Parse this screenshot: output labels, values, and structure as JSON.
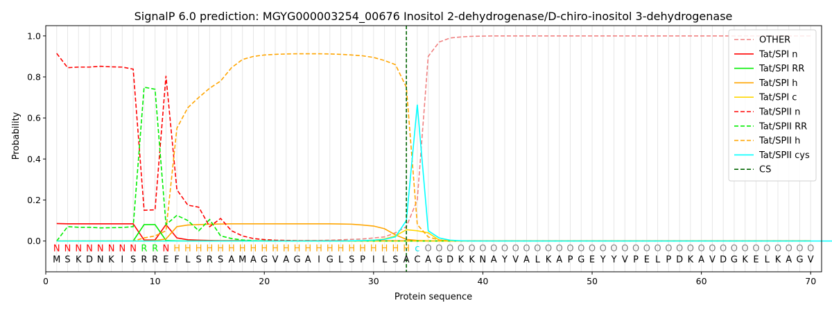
{
  "chart_data": {
    "type": "line",
    "title": "SignalP 6.0 prediction: MGYG000003254_00676 Inositol 2-dehydrogenase/D-chiro-inositol 3-dehydrogenase",
    "xlabel": "Protein sequence",
    "ylabel": "Probability",
    "xlim": [
      0,
      71
    ],
    "ylim": [
      -0.15,
      1.05
    ],
    "xticks": [
      0,
      10,
      20,
      30,
      40,
      50,
      60,
      70
    ],
    "yticks": [
      0.0,
      0.2,
      0.4,
      0.6,
      0.8,
      1.0
    ],
    "ytick_labels": [
      "0.0",
      "0.2",
      "0.4",
      "0.6",
      "0.8",
      "1.0"
    ],
    "legend_position": "upper right",
    "sequence": [
      "M",
      "S",
      "K",
      "D",
      "N",
      "K",
      "I",
      "S",
      "R",
      "R",
      "E",
      "F",
      "L",
      "S",
      "R",
      "S",
      "A",
      "M",
      "A",
      "G",
      "V",
      "A",
      "G",
      "A",
      "I",
      "G",
      "L",
      "S",
      "P",
      "I",
      "L",
      "S",
      "A",
      "C",
      "A",
      "G",
      "D",
      "K",
      "K",
      "N",
      "A",
      "Y",
      "V",
      "A",
      "L",
      "K",
      "A",
      "P",
      "G",
      "E",
      "Y",
      "Y",
      "V",
      "P",
      "E",
      "L",
      "P",
      "D",
      "K",
      "A",
      "V",
      "D",
      "G",
      "K",
      "E",
      "L",
      "K",
      "A",
      "G",
      "V"
    ],
    "region_labels": [
      "N",
      "N",
      "N",
      "N",
      "N",
      "N",
      "N",
      "N",
      "R",
      "R",
      "N",
      "H",
      "H",
      "H",
      "H",
      "H",
      "H",
      "H",
      "H",
      "H",
      "H",
      "H",
      "H",
      "H",
      "H",
      "H",
      "H",
      "H",
      "H",
      "H",
      "H",
      "H",
      "H",
      "c",
      "O",
      "O",
      "O",
      "O",
      "O",
      "O",
      "O",
      "O",
      "O",
      "O",
      "O",
      "O",
      "O",
      "O",
      "O",
      "O",
      "O",
      "O",
      "O",
      "O",
      "O",
      "O",
      "O",
      "O",
      "O",
      "O",
      "O",
      "O",
      "O",
      "O",
      "O",
      "O",
      "O",
      "O",
      "O",
      "O"
    ],
    "region_colors": {
      "N": "#ff0000",
      "R": "#00ee00",
      "H": "#ffa500",
      "c": "#00e5ee",
      "O": "#808080"
    },
    "cleavage_site": 33,
    "series": [
      {
        "name": "OTHER",
        "color": "#f08080",
        "dash": true,
        "values": [
          0,
          0,
          0,
          0,
          0,
          0,
          0,
          0,
          0,
          0,
          0,
          0,
          0,
          0,
          0,
          0,
          0,
          0,
          0,
          0,
          0,
          0,
          0,
          0.002,
          0.003,
          0.004,
          0.006,
          0.008,
          0.01,
          0.015,
          0.02,
          0.04,
          0.07,
          0.2,
          0.9,
          0.97,
          0.99,
          0.995,
          0.998,
          0.999,
          1,
          1,
          1,
          1,
          1,
          1,
          1,
          1,
          1,
          1,
          1,
          1,
          1,
          1,
          1,
          1,
          1,
          1,
          1,
          1,
          1,
          1,
          1,
          1,
          1,
          1,
          1,
          1,
          1,
          1
        ]
      },
      {
        "name": "Tat/SPI n",
        "color": "#ff0000",
        "dash": false,
        "values": [
          0.085,
          0.084,
          0.084,
          0.084,
          0.084,
          0.084,
          0.084,
          0.084,
          0.005,
          0.005,
          0.08,
          0.015,
          0.006,
          0.004,
          0.003,
          0.002,
          0.002,
          0.002,
          0.001,
          0.001,
          0.001,
          0.001,
          0.001,
          0.001,
          0.001,
          0.001,
          0.001,
          0.001,
          0.001,
          0.001,
          0.001,
          0.001,
          0.001,
          0,
          0,
          0,
          0,
          0,
          0,
          0,
          0,
          0,
          0,
          0,
          0,
          0,
          0,
          0,
          0,
          0,
          0,
          0,
          0,
          0,
          0,
          0,
          0,
          0,
          0,
          0,
          0,
          0,
          0,
          0,
          0,
          0,
          0,
          0,
          0,
          0
        ]
      },
      {
        "name": "Tat/SPI RR",
        "color": "#00ee00",
        "dash": false,
        "values": [
          0,
          0,
          0,
          0,
          0,
          0,
          0,
          0,
          0.08,
          0.08,
          0.003,
          0.001,
          0,
          0,
          0,
          0,
          0,
          0,
          0,
          0,
          0,
          0,
          0,
          0,
          0,
          0,
          0,
          0,
          0,
          0,
          0,
          0,
          0,
          0,
          0,
          0,
          0,
          0,
          0,
          0,
          0,
          0,
          0,
          0,
          0,
          0,
          0,
          0,
          0,
          0,
          0,
          0,
          0,
          0,
          0,
          0,
          0,
          0,
          0,
          0,
          0,
          0,
          0,
          0,
          0,
          0,
          0,
          0,
          0,
          0
        ]
      },
      {
        "name": "Tat/SPI h",
        "color": "#ffa500",
        "dash": false,
        "values": [
          0,
          0,
          0,
          0,
          0,
          0,
          0,
          0,
          0,
          0.002,
          0.01,
          0.07,
          0.078,
          0.08,
          0.082,
          0.083,
          0.084,
          0.084,
          0.084,
          0.084,
          0.084,
          0.084,
          0.084,
          0.084,
          0.084,
          0.084,
          0.083,
          0.082,
          0.078,
          0.073,
          0.06,
          0.03,
          0.008,
          0.003,
          0.001,
          0,
          0,
          0,
          0,
          0,
          0,
          0,
          0,
          0,
          0,
          0,
          0,
          0,
          0,
          0,
          0,
          0,
          0,
          0,
          0,
          0,
          0,
          0,
          0,
          0,
          0,
          0,
          0,
          0,
          0,
          0,
          0,
          0,
          0,
          0
        ]
      },
      {
        "name": "Tat/SPI c",
        "color": "#ffd700",
        "dash": false,
        "values": [
          0,
          0,
          0,
          0,
          0,
          0,
          0,
          0,
          0,
          0,
          0,
          0,
          0,
          0,
          0,
          0,
          0,
          0,
          0,
          0,
          0,
          0,
          0,
          0,
          0,
          0,
          0,
          0.001,
          0.002,
          0.004,
          0.01,
          0.025,
          0.055,
          0.05,
          0.04,
          0.005,
          0.001,
          0,
          0,
          0,
          0,
          0,
          0,
          0,
          0,
          0,
          0,
          0,
          0,
          0,
          0,
          0,
          0,
          0,
          0,
          0,
          0,
          0,
          0,
          0,
          0,
          0,
          0,
          0,
          0,
          0,
          0,
          0,
          0,
          0
        ]
      },
      {
        "name": "Tat/SPII n",
        "color": "#ff0000",
        "dash": true,
        "values": [
          0.915,
          0.845,
          0.848,
          0.848,
          0.852,
          0.849,
          0.848,
          0.838,
          0.15,
          0.152,
          0.805,
          0.25,
          0.175,
          0.165,
          0.07,
          0.11,
          0.05,
          0.025,
          0.012,
          0.007,
          0.004,
          0.003,
          0.002,
          0.002,
          0.001,
          0.001,
          0.001,
          0.001,
          0.001,
          0.001,
          0.001,
          0,
          0,
          0,
          0,
          0,
          0,
          0,
          0,
          0,
          0,
          0,
          0,
          0,
          0,
          0,
          0,
          0,
          0,
          0,
          0,
          0,
          0,
          0,
          0,
          0,
          0,
          0,
          0,
          0,
          0,
          0,
          0,
          0,
          0,
          0,
          0,
          0,
          0,
          0
        ]
      },
      {
        "name": "Tat/SPII RR",
        "color": "#00ee00",
        "dash": true,
        "values": [
          0,
          0.07,
          0.067,
          0.067,
          0.064,
          0.065,
          0.066,
          0.07,
          0.75,
          0.74,
          0.08,
          0.125,
          0.1,
          0.05,
          0.105,
          0.025,
          0.012,
          0.005,
          0.002,
          0.001,
          0,
          0,
          0,
          0,
          0,
          0,
          0,
          0,
          0,
          0,
          0,
          0,
          0,
          0,
          0,
          0,
          0,
          0,
          0,
          0,
          0,
          0,
          0,
          0,
          0,
          0,
          0,
          0,
          0,
          0,
          0,
          0,
          0,
          0,
          0,
          0,
          0,
          0,
          0,
          0,
          0,
          0,
          0,
          0,
          0,
          0,
          0,
          0,
          0,
          0
        ]
      },
      {
        "name": "Tat/SPII h",
        "color": "#ffa500",
        "dash": true,
        "values": [
          0,
          0,
          0,
          0,
          0,
          0,
          0,
          0,
          0.015,
          0.025,
          0.05,
          0.55,
          0.65,
          0.7,
          0.745,
          0.78,
          0.845,
          0.885,
          0.9,
          0.907,
          0.91,
          0.912,
          0.913,
          0.913,
          0.913,
          0.912,
          0.91,
          0.907,
          0.903,
          0.895,
          0.88,
          0.86,
          0.75,
          0.08,
          0.02,
          0.005,
          0.001,
          0,
          0,
          0,
          0,
          0,
          0,
          0,
          0,
          0,
          0,
          0,
          0,
          0,
          0,
          0,
          0,
          0,
          0,
          0,
          0,
          0,
          0,
          0,
          0,
          0,
          0,
          0,
          0,
          0,
          0,
          0,
          0,
          0
        ]
      },
      {
        "name": "Tat/SPII c",
        "color": "#ffd700",
        "dash": true,
        "values": [
          0,
          0,
          0,
          0,
          0,
          0,
          0,
          0,
          0,
          0,
          0,
          0,
          0,
          0,
          0,
          0,
          0,
          0,
          0,
          0,
          0,
          0,
          0,
          0,
          0,
          0,
          0,
          0,
          0,
          0,
          0,
          0,
          0,
          0,
          0,
          0,
          0,
          0,
          0,
          0,
          0,
          0,
          0,
          0,
          0,
          0,
          0,
          0,
          0,
          0,
          0,
          0,
          0,
          0,
          0,
          0,
          0,
          0,
          0,
          0,
          0,
          0,
          0,
          0,
          0,
          0,
          0,
          0,
          0,
          0
        ],
        "in_legend": false
      },
      {
        "name": "Tat/SPII cys",
        "color": "#00ffff",
        "dash": false,
        "values": [
          0,
          0,
          0,
          0,
          0,
          0,
          0,
          0,
          0,
          0,
          0,
          0,
          0,
          0,
          0,
          0,
          0,
          0,
          0,
          0,
          0,
          0,
          0,
          0,
          0,
          0,
          0,
          0.001,
          0.002,
          0.004,
          0.008,
          0.02,
          0.1,
          0.665,
          0.05,
          0.015,
          0.004,
          0.001,
          0,
          0,
          0,
          0,
          0,
          0,
          0,
          0,
          0,
          0,
          0,
          0,
          0,
          0,
          0,
          0,
          0,
          0,
          0,
          0,
          0,
          0,
          0,
          0,
          0,
          0,
          0,
          0,
          0,
          0,
          0,
          0,
          0,
          0
        ]
      }
    ],
    "legend_extra": {
      "name": "CS",
      "color": "#006400",
      "dash": true
    }
  }
}
